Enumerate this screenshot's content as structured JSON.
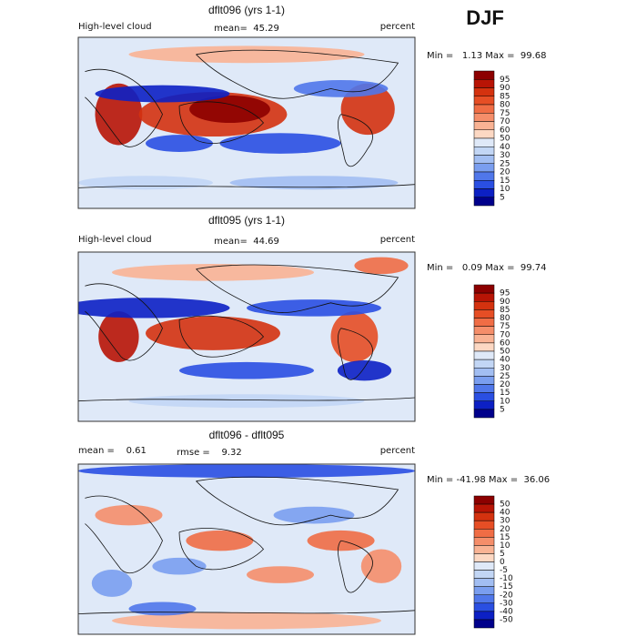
{
  "season": "DJF",
  "panels": [
    {
      "title": "dflt096 (yrs 1-1)",
      "left_label": "High-level cloud",
      "center_label": "mean=  45.29",
      "right_label": "percent",
      "stats": "Min =   1.13 Max =  99.68",
      "colorbar": {
        "labels": [
          95,
          90,
          85,
          80,
          75,
          70,
          60,
          50,
          40,
          30,
          25,
          20,
          15,
          10,
          5
        ],
        "colors": [
          "#8c0000",
          "#b81405",
          "#d4320f",
          "#e64e25",
          "#f06d45",
          "#f58e6a",
          "#f9b394",
          "#fcd8c3",
          "#dfe9f8",
          "#c2d6f5",
          "#a2bef2",
          "#7a9eef",
          "#5077ea",
          "#2a4fe2",
          "#0c20c4",
          "#00008b"
        ]
      }
    },
    {
      "title": "dflt095 (yrs 1-1)",
      "left_label": "High-level cloud",
      "center_label": "mean=  44.69",
      "right_label": "percent",
      "stats": "Min =   0.09 Max =  99.74",
      "colorbar": {
        "labels": [
          95,
          90,
          85,
          80,
          75,
          70,
          60,
          50,
          40,
          30,
          25,
          20,
          15,
          10,
          5
        ],
        "colors": [
          "#8c0000",
          "#b81405",
          "#d4320f",
          "#e64e25",
          "#f06d45",
          "#f58e6a",
          "#f9b394",
          "#fcd8c3",
          "#dfe9f8",
          "#c2d6f5",
          "#a2bef2",
          "#7a9eef",
          "#5077ea",
          "#2a4fe2",
          "#0c20c4",
          "#00008b"
        ]
      }
    },
    {
      "title": "dflt096 - dflt095",
      "left_label": "mean =    0.61",
      "center_label": "rmse =    9.32",
      "right_label": "percent",
      "stats": "Min = -41.98 Max =  36.06",
      "colorbar": {
        "labels": [
          50,
          40,
          30,
          20,
          15,
          10,
          5,
          0,
          -5,
          -10,
          -15,
          -20,
          -30,
          -40,
          -50
        ],
        "colors": [
          "#8c0000",
          "#b81405",
          "#d4320f",
          "#e64e25",
          "#f06d45",
          "#f58e6a",
          "#f9b394",
          "#fcd8c3",
          "#dfe9f8",
          "#c2d6f5",
          "#a2bef2",
          "#7a9eef",
          "#5077ea",
          "#2a4fe2",
          "#0c20c4",
          "#00008b"
        ]
      }
    }
  ]
}
